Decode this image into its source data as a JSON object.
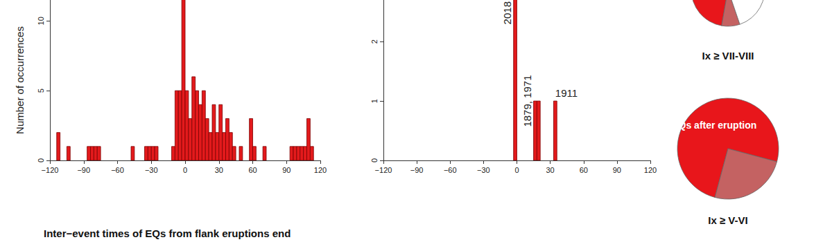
{
  "chart_data": [
    {
      "type": "histogram",
      "ylabel": "Number of occurrences",
      "xlabel": "Inter−event times of EQs from flank eruptions end",
      "bins": [
        -120,
        -117,
        -114,
        -111,
        -108,
        -105,
        -102,
        -99,
        -96,
        -93,
        -90,
        -87,
        -84,
        -81,
        -78,
        -75,
        -72,
        -69,
        -66,
        -63,
        -60,
        -57,
        -54,
        -51,
        -48,
        -45,
        -42,
        -39,
        -36,
        -33,
        -30,
        -27,
        -24,
        -21,
        -18,
        -15,
        -12,
        -9,
        -6,
        -3,
        0,
        3,
        6,
        9,
        12,
        15,
        18,
        21,
        24,
        27,
        30,
        33,
        36,
        39,
        42,
        45,
        48,
        51,
        54,
        57,
        60,
        63,
        66,
        69,
        72,
        75,
        78,
        81,
        84,
        87,
        90,
        93,
        96,
        99,
        102,
        105,
        108,
        111,
        114,
        117,
        120
      ],
      "counts": [
        0,
        0,
        2,
        0,
        0,
        1,
        0,
        0,
        0,
        0,
        0,
        1,
        1,
        1,
        1,
        0,
        0,
        0,
        0,
        0,
        0,
        0,
        0,
        0,
        1,
        0,
        0,
        0,
        1,
        1,
        1,
        1,
        0,
        0,
        0,
        0,
        1,
        5,
        5,
        12,
        5,
        3,
        6,
        5,
        4,
        5,
        3,
        2,
        4,
        2,
        4,
        2,
        3,
        2,
        1,
        0,
        1,
        0,
        0,
        3,
        1,
        0,
        0,
        1,
        0,
        0,
        0,
        0,
        0,
        0,
        0,
        1,
        1,
        1,
        1,
        1,
        3,
        1,
        0,
        0
      ],
      "color": "#e31a1c",
      "xlim": [
        -120,
        120
      ],
      "xticks": [
        {
          "value": -120,
          "label": "−120"
        },
        {
          "value": -90,
          "label": "−90"
        },
        {
          "value": -60,
          "label": "−60"
        },
        {
          "value": -30,
          "label": "−30"
        },
        0,
        30,
        60,
        90,
        120
      ],
      "ylim": [
        0,
        11.5
      ],
      "yticks": [
        0,
        5,
        10
      ],
      "grid": false
    },
    {
      "type": "histogram",
      "bins": [
        -3,
        0,
        3,
        6,
        9,
        12,
        15,
        18,
        21,
        24,
        27,
        30,
        33,
        36
      ],
      "counts": [
        3,
        0,
        0,
        0,
        0,
        0,
        1,
        1,
        0,
        0,
        0,
        0,
        1
      ],
      "annotations": [
        {
          "text": "2018",
          "x": -1.5
        },
        {
          "text": "1879, 1971",
          "x": 16.5
        },
        {
          "text": "1911",
          "x": 34.5
        }
      ],
      "color": "#e31a1c",
      "xlim": [
        -120,
        120
      ],
      "xticks": [
        {
          "value": -120,
          "label": "−120"
        },
        {
          "value": -90,
          "label": "−90"
        },
        {
          "value": -60,
          "label": "−60"
        },
        {
          "value": -30,
          "label": "−30"
        },
        0,
        30,
        60,
        90,
        120
      ],
      "ylim": [
        0,
        2.7
      ],
      "yticks": [
        0,
        1,
        2
      ],
      "grid": false
    },
    {
      "type": "pie",
      "title": "Ix ≥ VII-VIII",
      "categories": [
        null,
        null,
        null
      ],
      "values": [
        45,
        8,
        47
      ],
      "colors": [
        "#e8161b",
        "#c46262",
        "#ffffff"
      ]
    },
    {
      "type": "pie",
      "title": "Ix ≥ V-VI",
      "categories": [
        "EQs after eruption",
        null
      ],
      "values": [
        75,
        25
      ],
      "colors": [
        "#e8161b",
        "#c46262"
      ]
    }
  ]
}
